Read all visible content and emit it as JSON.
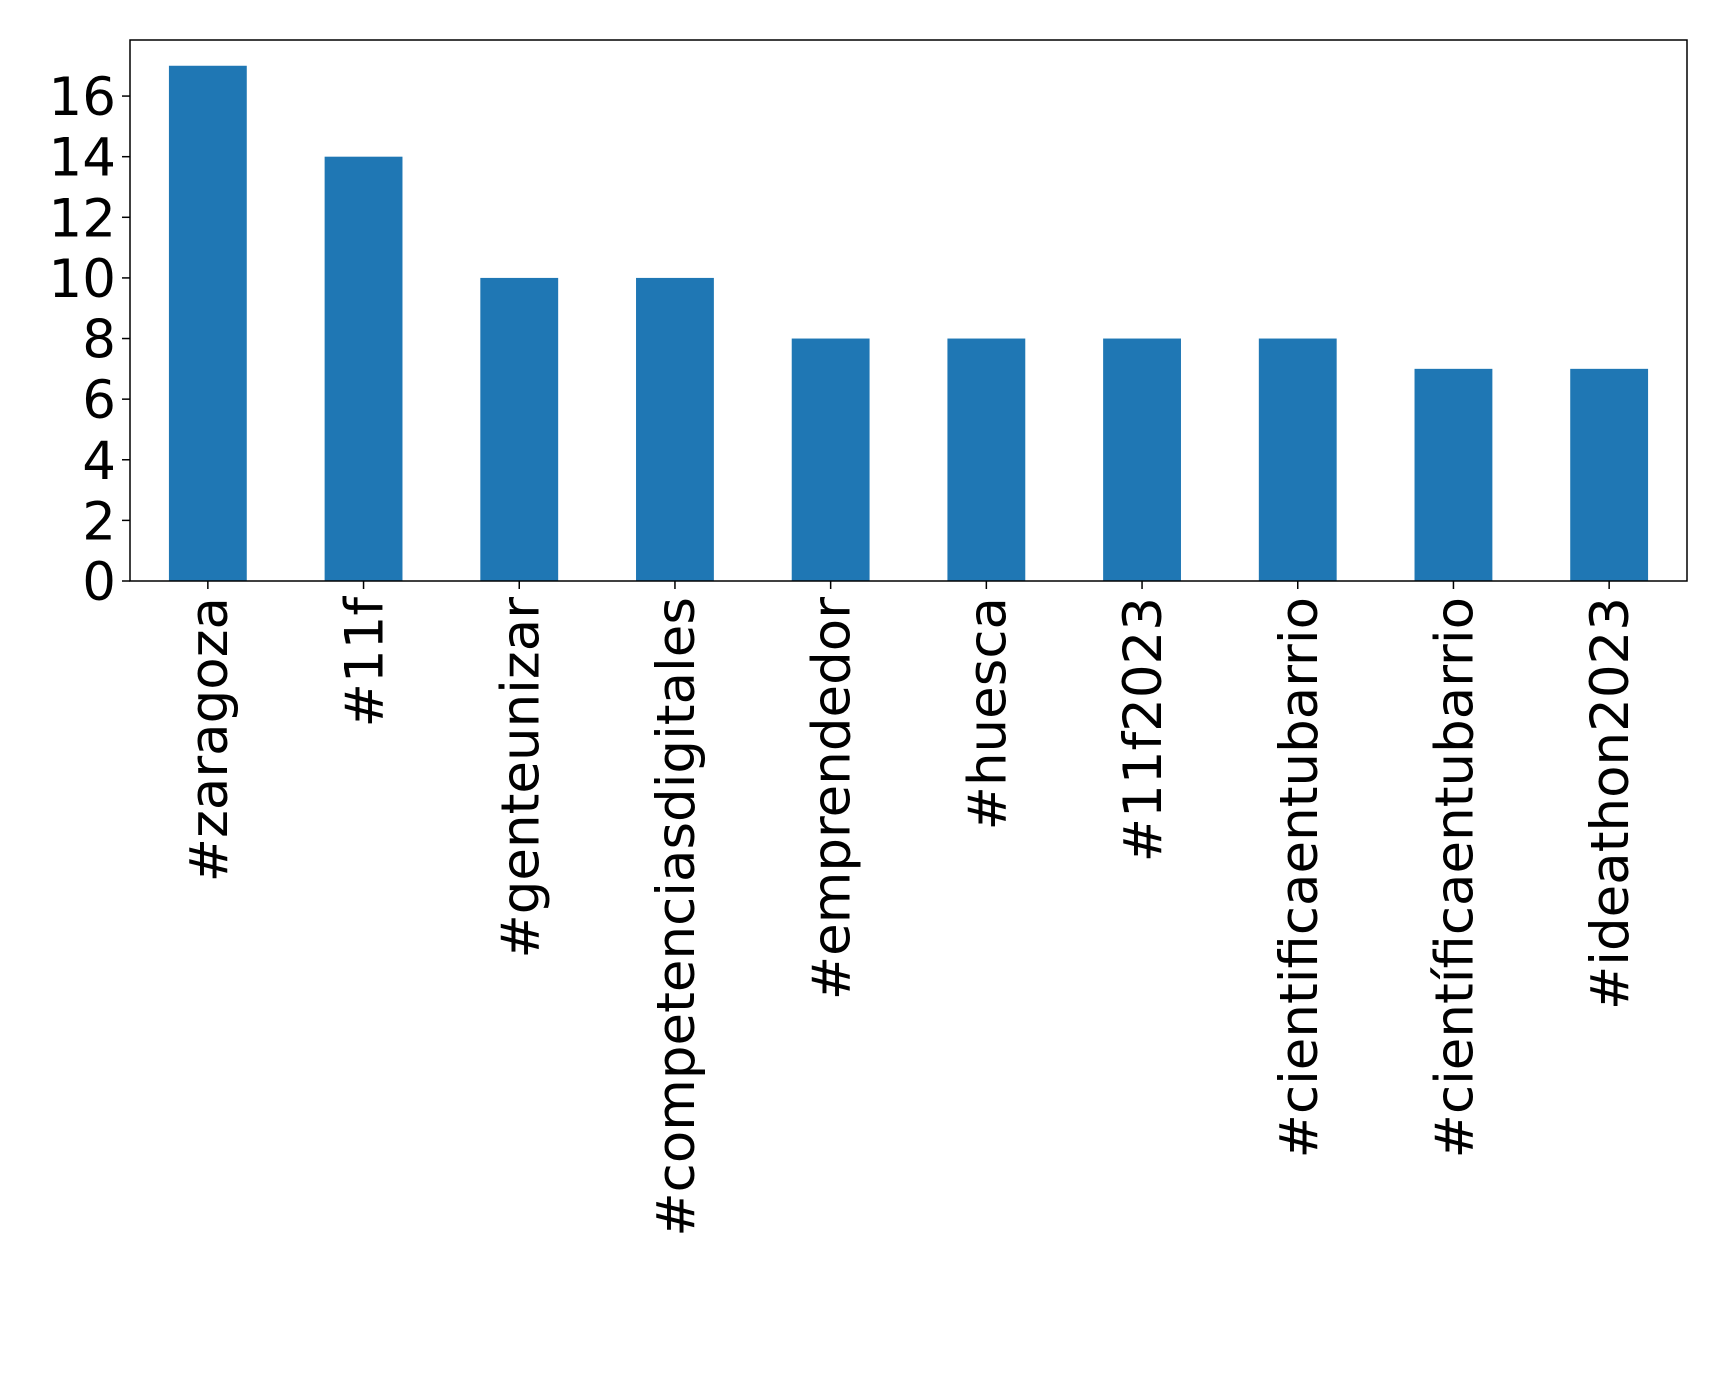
{
  "chart_data": {
    "type": "bar",
    "categories": [
      "#zaragoza",
      "#11f",
      "#genteunizar",
      "#competenciasdigitales",
      "#emprendedor",
      "#huesca",
      "#11f2023",
      "#cientificaentubarrio",
      "#científicaentubarrio",
      "#ideathon2023"
    ],
    "values": [
      17,
      14,
      10,
      10,
      8,
      8,
      8,
      8,
      7,
      7
    ],
    "color": "#1f77b4",
    "ylim": [
      0,
      17.85
    ],
    "yticks": [
      0,
      2,
      4,
      6,
      8,
      10,
      12,
      14,
      16
    ],
    "grid": false
  }
}
